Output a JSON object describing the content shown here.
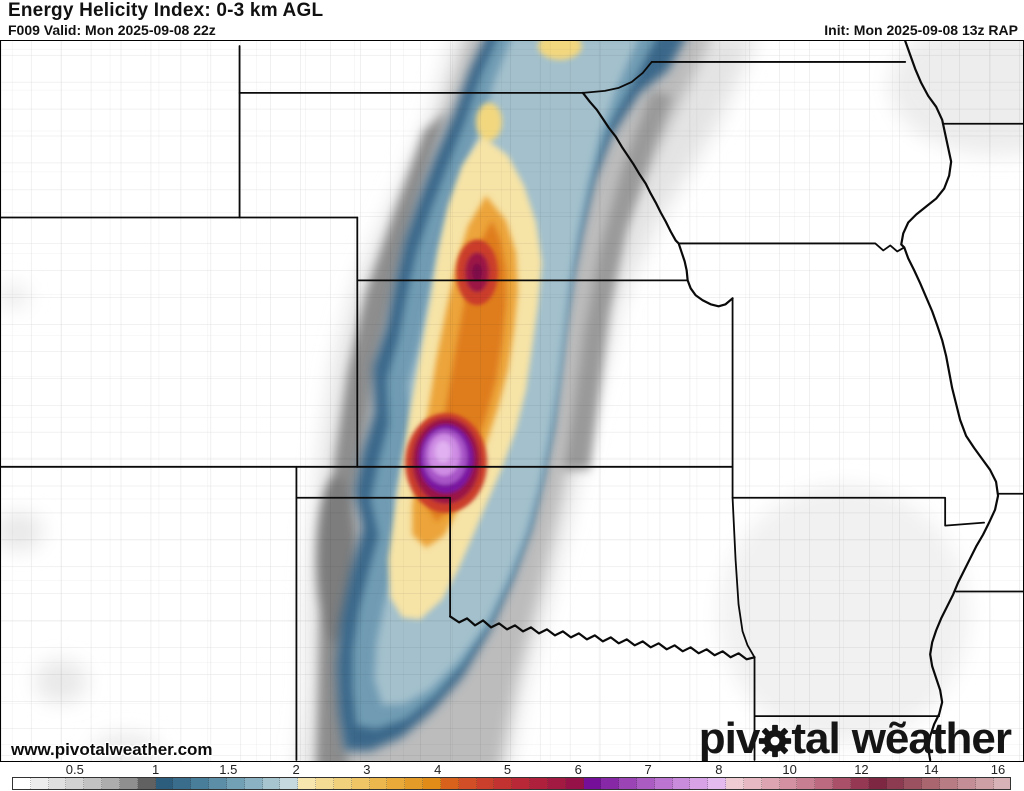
{
  "header": {
    "title": "Energy Helicity Index: 0-3 km AGL",
    "valid": "F009 Valid: Mon 2025-09-08 22z",
    "init": "Init: Mon 2025-09-08 13z RAP"
  },
  "watermark": "www.pivotalweather.com",
  "logo": {
    "part1": "piv",
    "part2": "tal",
    "part3": "wẽather"
  },
  "colorbar": {
    "border_color": "#333333",
    "ticks": [
      {
        "label": "0.5",
        "pos": 6.2
      },
      {
        "label": "1",
        "pos": 14.3
      },
      {
        "label": "1.5",
        "pos": 21.6
      },
      {
        "label": "2",
        "pos": 28.4
      },
      {
        "label": "3",
        "pos": 35.5
      },
      {
        "label": "4",
        "pos": 42.6
      },
      {
        "label": "5",
        "pos": 49.6
      },
      {
        "label": "6",
        "pos": 56.7
      },
      {
        "label": "7",
        "pos": 63.7
      },
      {
        "label": "8",
        "pos": 70.8
      },
      {
        "label": "10",
        "pos": 77.9
      },
      {
        "label": "12",
        "pos": 85.1
      },
      {
        "label": "14",
        "pos": 92.1
      },
      {
        "label": "16",
        "pos": 98.8
      }
    ],
    "segments": [
      "#ffffff",
      "#ededed",
      "#e0e0e0",
      "#d2d2d2",
      "#c2c2c2",
      "#adadad",
      "#8f8f8f",
      "#616161",
      "#2c5d7d",
      "#3a6d8c",
      "#497e9b",
      "#5c8ea8",
      "#72a0b4",
      "#8bb2c2",
      "#a7c5cf",
      "#c6d9de",
      "#f7e6ae",
      "#f5dc95",
      "#f2d17d",
      "#efc565",
      "#ecb84e",
      "#e9aa39",
      "#e59b27",
      "#e18b18",
      "#d8611b",
      "#d14e26",
      "#ca3f2b",
      "#c23230",
      "#b92837",
      "#ae203c",
      "#a21942",
      "#951148",
      "#750f9a",
      "#8729a7",
      "#9a44b5",
      "#ab5cc3",
      "#bb74d0",
      "#c98bdb",
      "#d8a3e6",
      "#e5baef",
      "#efccd4",
      "#e7b9c3",
      "#dda5b2",
      "#d391a1",
      "#c97f92",
      "#bc6a80",
      "#aa5068",
      "#943853",
      "#7d2742",
      "#8c3b50",
      "#9b515f",
      "#aa666f",
      "#b87c84",
      "#c38e95",
      "#cda0a6",
      "#d7b2b7"
    ]
  }
}
